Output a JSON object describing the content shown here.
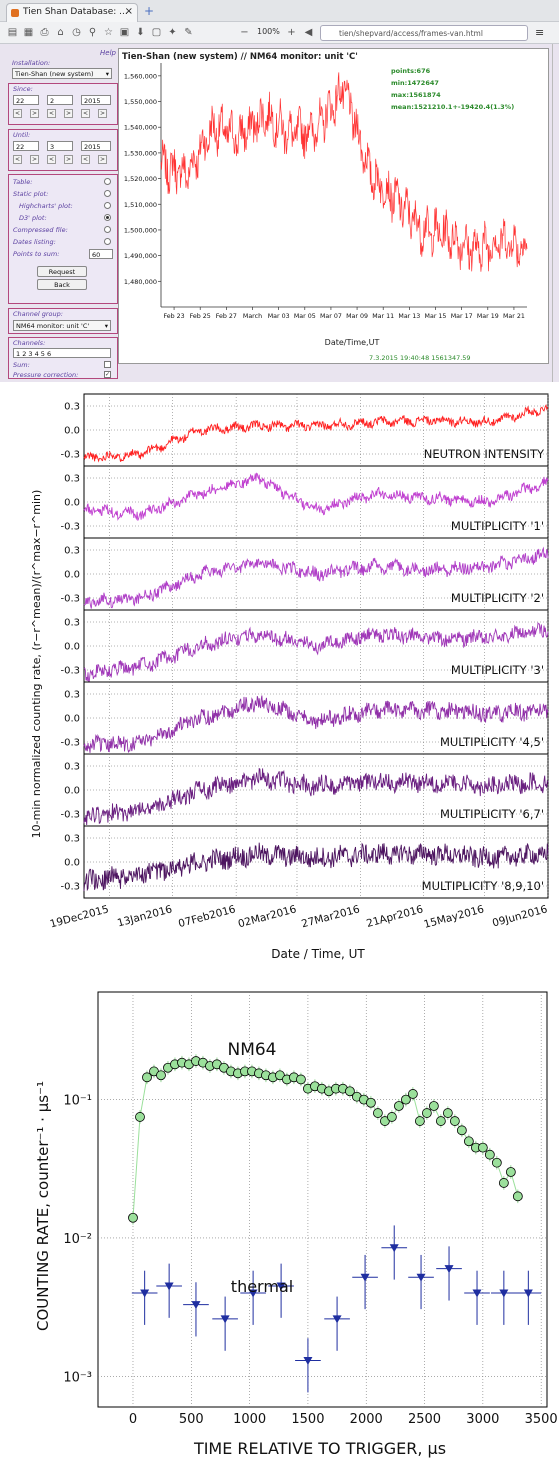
{
  "browser": {
    "tab_title": "Tien Shan Database: ...",
    "zoom": "100%",
    "url": "tien/shepvard/access/frames-van.html"
  },
  "form": {
    "help": "Help",
    "installation_label": "Installation:",
    "installation_value": "Tien-Shan (new system)",
    "since_label": "Since:",
    "since": {
      "day": "22",
      "month": "2",
      "year": "2015"
    },
    "until_label": "Until:",
    "until": {
      "day": "22",
      "month": "3",
      "year": "2015"
    },
    "arrows": [
      "<",
      ">",
      "<",
      ">",
      "<",
      ">"
    ],
    "options": [
      {
        "label": "Table:",
        "indent": false,
        "selected": false
      },
      {
        "label": "Static plot:",
        "indent": false,
        "selected": false
      },
      {
        "label": "Highcharts' plot:",
        "indent": true,
        "selected": false
      },
      {
        "label": "D3' plot:",
        "indent": true,
        "selected": true
      },
      {
        "label": "Compressed file:",
        "indent": false,
        "selected": false
      },
      {
        "label": "Dates listing:",
        "indent": false,
        "selected": false
      }
    ],
    "points_label": "Points to sum:",
    "points_value": "60",
    "request": "Request",
    "back": "Back",
    "channel_group_label": "Channel group:",
    "channel_group_value": "NM64 monitor: unit 'C'",
    "channels_label": "Channels:",
    "channels_value": "1 2 3 4 5 6",
    "sum_label": "Sum:",
    "pressure_label": "Pressure correction:"
  },
  "browser_plot": {
    "title": "Tien-Shan (new system) // NM64 monitor: unit 'C'",
    "stats": [
      "points:676",
      "min:1472647",
      "max:1561874",
      "mean:1521210.1+-19420.4(1.3%)"
    ],
    "y_ticks": [
      "1,560,000",
      "1,550,000",
      "1,540,000",
      "1,530,000",
      "1,520,000",
      "1,510,000",
      "1,500,000",
      "1,490,000",
      "1,480,000"
    ],
    "x_ticks": [
      "Feb 23",
      "Feb 25",
      "Feb 27",
      "March",
      "Mar 03",
      "Mar 05",
      "Mar 07",
      "Mar 09",
      "Mar 11",
      "Mar 13",
      "Mar 15",
      "Mar 17",
      "Mar 19",
      "Mar 21"
    ],
    "xlabel": "Date/Time,UT",
    "readout": "7.3.2015  19:40:48  1561347.59",
    "line_color": "#ff3333",
    "stats_color": "#2a8a2a"
  },
  "chart_data": [
    {
      "type": "line",
      "title": "Tien-Shan (new system) // NM64 monitor: unit 'C'",
      "xlabel": "Date/Time,UT",
      "ylabel": "",
      "ylim": [
        1470000,
        1565000
      ],
      "x": [
        "2015-02-22",
        "2015-02-24",
        "2015-02-26",
        "2015-02-28",
        "2015-03-02",
        "2015-03-04",
        "2015-03-06",
        "2015-03-08",
        "2015-03-10",
        "2015-03-12",
        "2015-03-14",
        "2015-03-16",
        "2015-03-18",
        "2015-03-20",
        "2015-03-22"
      ],
      "series": [
        {
          "values": [
            1525000,
            1522000,
            1540000,
            1536000,
            1545000,
            1537000,
            1540000,
            1555000,
            1522000,
            1512000,
            1500000,
            1498000,
            1492000,
            1496000,
            1493000
          ]
        }
      ]
    },
    {
      "type": "line",
      "xlabel": "Date / Time,   UT",
      "ylabel": "10-min normalized counting rate, (r−r^mean)/(r^max−r^min)",
      "ylim": [
        -0.45,
        0.45
      ],
      "x": [
        "2015-12-09",
        "2015-12-19",
        "2016-01-13",
        "2016-02-07",
        "2016-03-02",
        "2016-03-27",
        "2016-04-21",
        "2016-05-15",
        "2016-06-09"
      ],
      "x_ticks": [
        "19Dec2015",
        "13Jan2016",
        "07Feb2016",
        "02Mar2016",
        "27Mar2016",
        "21Apr2016",
        "15May2016",
        "09Jun2016"
      ],
      "y_ticks": [
        "0.3",
        "0.0",
        "-0.3"
      ],
      "series": [
        {
          "name": "NEUTRON INTENSITY",
          "color": "#ff2020",
          "values": [
            -0.35,
            -0.3,
            0.0,
            0.05,
            0.05,
            0.1,
            0.12,
            0.1,
            0.28
          ]
        },
        {
          "name": "MULTIPLICITY '1'",
          "color": "#c040d0",
          "values": [
            -0.1,
            -0.15,
            0.1,
            0.3,
            -0.1,
            0.1,
            0.05,
            0.0,
            0.25
          ]
        },
        {
          "name": "MULTIPLICITY '2'",
          "color": "#b040c8",
          "values": [
            -0.35,
            -0.3,
            0.0,
            0.15,
            0.0,
            0.1,
            0.05,
            0.1,
            0.25
          ]
        },
        {
          "name": "MULTIPLICITY '3'",
          "color": "#a038b8",
          "values": [
            -0.35,
            -0.25,
            0.0,
            0.15,
            0.0,
            0.15,
            0.1,
            0.1,
            0.2
          ]
        },
        {
          "name": "MULTIPLICITY '4,5'",
          "color": "#9030a8",
          "values": [
            -0.35,
            -0.3,
            0.0,
            0.2,
            -0.05,
            0.1,
            0.1,
            0.05,
            0.1
          ]
        },
        {
          "name": "MULTIPLICITY '6,7'",
          "color": "#6a1f80",
          "values": [
            -0.35,
            -0.25,
            0.0,
            0.15,
            0.05,
            0.1,
            0.1,
            0.05,
            0.1
          ]
        },
        {
          "name": "MULTIPLICITY '8,9,10'",
          "color": "#4d1560",
          "values": [
            -0.25,
            -0.15,
            0.0,
            0.1,
            0.05,
            0.1,
            0.1,
            0.05,
            0.1
          ]
        }
      ]
    },
    {
      "type": "scatter",
      "xlabel": "TIME RELATIVE TO TRIGGER, μs",
      "ylabel": "COUNTING RATE, counter⁻¹ · μs⁻¹",
      "xlim": [
        -300,
        3550
      ],
      "ylim": [
        0.0006,
        0.6
      ],
      "log_y": true,
      "x_ticks": [
        "0",
        "500",
        "1000",
        "1500",
        "2000",
        "2500",
        "3000",
        "3500"
      ],
      "y_ticks": [
        "10⁻³",
        "10⁻²",
        "10⁻¹"
      ],
      "series": [
        {
          "name": "NM64",
          "color": "#9be09b",
          "x": [
            0,
            60,
            120,
            180,
            240,
            300,
            360,
            420,
            480,
            540,
            600,
            660,
            720,
            780,
            840,
            900,
            960,
            1020,
            1080,
            1140,
            1200,
            1260,
            1320,
            1380,
            1440,
            1500,
            1560,
            1620,
            1680,
            1740,
            1800,
            1860,
            1920,
            1980,
            2040,
            2100,
            2160,
            2220,
            2280,
            2340,
            2400,
            2460,
            2520,
            2580,
            2640,
            2700,
            2760,
            2820,
            2880,
            2940,
            3000,
            3060,
            3120,
            3180,
            3240,
            3300
          ],
          "values": [
            0.014,
            0.075,
            0.145,
            0.16,
            0.15,
            0.17,
            0.18,
            0.185,
            0.18,
            0.19,
            0.185,
            0.175,
            0.18,
            0.17,
            0.16,
            0.155,
            0.16,
            0.16,
            0.155,
            0.15,
            0.145,
            0.15,
            0.14,
            0.145,
            0.14,
            0.12,
            0.125,
            0.12,
            0.115,
            0.12,
            0.12,
            0.115,
            0.105,
            0.1,
            0.095,
            0.08,
            0.07,
            0.075,
            0.09,
            0.1,
            0.11,
            0.07,
            0.08,
            0.09,
            0.07,
            0.08,
            0.07,
            0.06,
            0.05,
            0.045,
            0.045,
            0.04,
            0.035,
            0.025,
            0.03,
            0.02
          ]
        },
        {
          "name": "thermal",
          "color": "#1f2ea0",
          "x": [
            100,
            310,
            540,
            790,
            1030,
            1270,
            1500,
            1750,
            1990,
            2240,
            2470,
            2710,
            2950,
            3180,
            3390
          ],
          "values": [
            0.004,
            0.0045,
            0.0033,
            0.0026,
            0.004,
            0.0045,
            0.0013,
            0.0026,
            0.0052,
            0.0085,
            0.0052,
            0.006,
            0.004,
            0.004,
            0.004
          ]
        }
      ]
    }
  ]
}
